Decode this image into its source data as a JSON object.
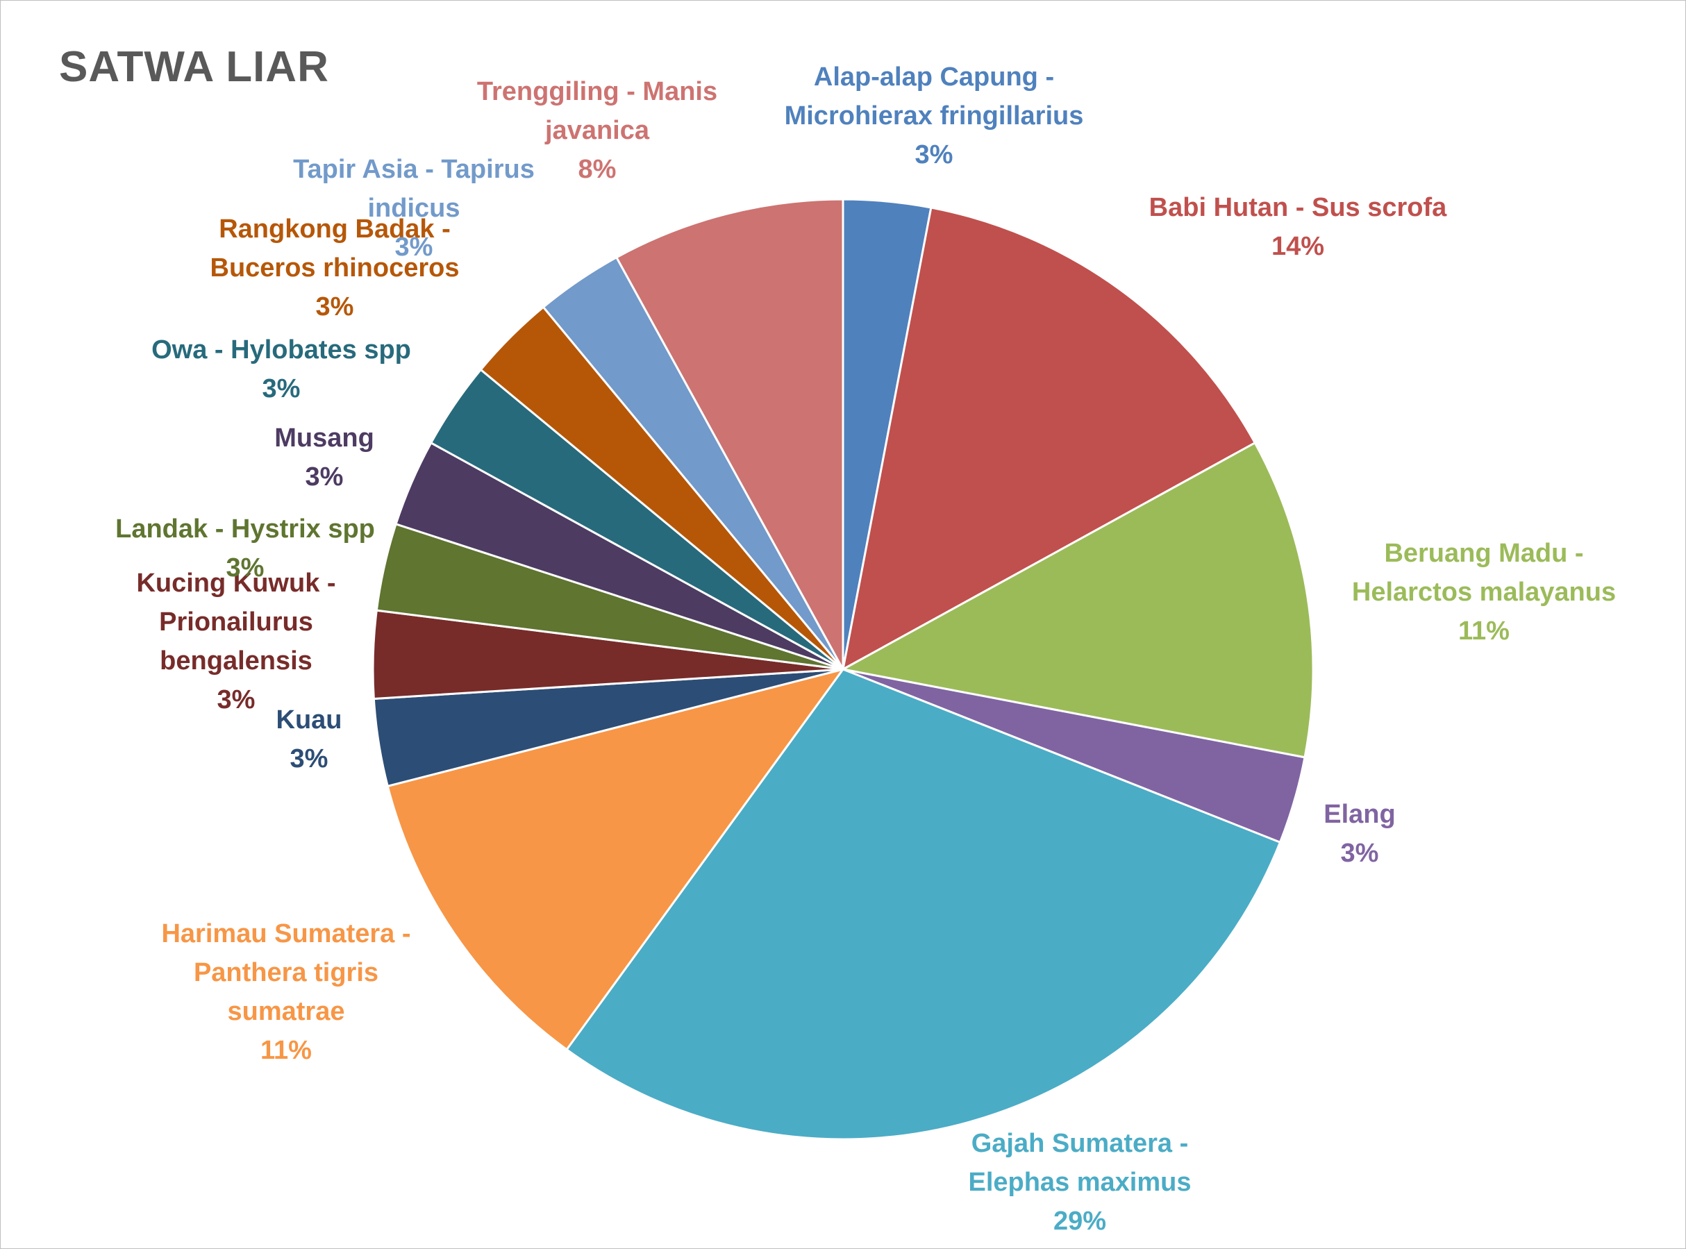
{
  "chart_data": {
    "type": "pie",
    "title": "SATWA LIAR",
    "slices": [
      {
        "label": [
          "Alap-alap Capung -",
          "Microhierax fringillarius"
        ],
        "value": 3,
        "display": "3%",
        "color": "#4f81bd",
        "label_color": "#4f81bd"
      },
      {
        "label": [
          "Babi Hutan - Sus scrofa"
        ],
        "value": 14,
        "display": "14%",
        "color": "#c0504d",
        "label_color": "#c0504d"
      },
      {
        "label": [
          "Beruang Madu -",
          "Helarctos malayanus"
        ],
        "value": 11,
        "display": "11%",
        "color": "#9bbb59",
        "label_color": "#9bbb59"
      },
      {
        "label": [
          "Elang"
        ],
        "value": 3,
        "display": "3%",
        "color": "#8064a2",
        "label_color": "#8064a2"
      },
      {
        "label": [
          "Gajah Sumatera -",
          "Elephas maximus"
        ],
        "value": 29,
        "display": "29%",
        "color": "#4bacc6",
        "label_color": "#4bacc6"
      },
      {
        "label": [
          "Harimau Sumatera -",
          "Panthera tigris",
          "sumatrae"
        ],
        "value": 11,
        "display": "11%",
        "color": "#f79646",
        "label_color": "#f79646"
      },
      {
        "label": [
          "Kuau"
        ],
        "value": 3,
        "display": "3%",
        "color": "#2c4d75",
        "label_color": "#2c4d75"
      },
      {
        "label": [
          "Kucing Kuwuk -",
          "Prionailurus",
          "bengalensis"
        ],
        "value": 3,
        "display": "3%",
        "color": "#772c2a",
        "label_color": "#772c2a"
      },
      {
        "label": [
          "Landak - Hystrix spp"
        ],
        "value": 3,
        "display": "3%",
        "color": "#5f7530",
        "label_color": "#5f7530"
      },
      {
        "label": [
          "Musang"
        ],
        "value": 3,
        "display": "3%",
        "color": "#4d3b62",
        "label_color": "#4d3b62"
      },
      {
        "label": [
          "Owa - Hylobates spp"
        ],
        "value": 3,
        "display": "3%",
        "color": "#276a7c",
        "label_color": "#276a7c"
      },
      {
        "label": [
          "Rangkong Badak -",
          "Buceros rhinoceros"
        ],
        "value": 3,
        "display": "3%",
        "color": "#b65708",
        "label_color": "#b65708"
      },
      {
        "label": [
          "Tapir Asia - Tapirus",
          "indicus"
        ],
        "value": 3,
        "display": "3%",
        "color": "#729aca",
        "label_color": "#729aca"
      },
      {
        "label": [
          "Trenggiling - Manis",
          "javanica"
        ],
        "value": 8,
        "display": "8%",
        "color": "#cd7371",
        "label_color": "#cd7371"
      }
    ],
    "legend": "none"
  }
}
